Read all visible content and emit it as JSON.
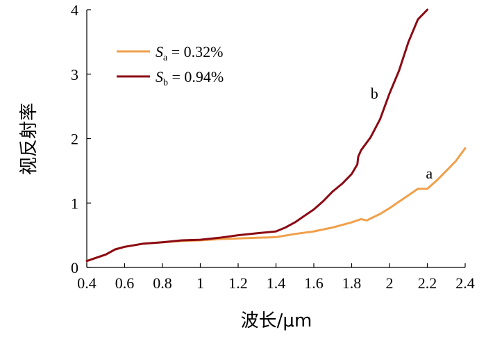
{
  "chart_data": {
    "type": "line",
    "xlabel": "波长/μm",
    "ylabel": "视反射率",
    "xlim": [
      0.4,
      2.4
    ],
    "ylim": [
      0,
      4
    ],
    "x_ticks": [
      "0.4",
      "0.6",
      "0.8",
      "1",
      "1.2",
      "1.4",
      "1.6",
      "1.8",
      "2",
      "2.2",
      "2.4"
    ],
    "y_ticks": [
      "0",
      "1",
      "2",
      "3",
      "4"
    ],
    "grid": false,
    "legend_position": "top-left",
    "series": [
      {
        "name_symbol": "S",
        "name_sub": "a",
        "name_rest": " = 0.32%",
        "color": "#f0a04b",
        "annotation": "a",
        "annotation_at": [
          2.21,
          1.38
        ],
        "x": [
          0.4,
          0.45,
          0.5,
          0.55,
          0.6,
          0.7,
          0.8,
          0.9,
          1.0,
          1.1,
          1.2,
          1.3,
          1.4,
          1.5,
          1.6,
          1.7,
          1.8,
          1.85,
          1.88,
          1.9,
          1.95,
          2.0,
          2.05,
          2.1,
          2.15,
          2.2,
          2.25,
          2.3,
          2.35,
          2.4
        ],
        "y": [
          0.1,
          0.15,
          0.2,
          0.28,
          0.32,
          0.37,
          0.39,
          0.41,
          0.42,
          0.44,
          0.45,
          0.46,
          0.47,
          0.52,
          0.56,
          0.62,
          0.7,
          0.75,
          0.73,
          0.76,
          0.83,
          0.92,
          1.02,
          1.12,
          1.22,
          1.22,
          1.35,
          1.5,
          1.65,
          1.85
        ]
      },
      {
        "name_symbol": "S",
        "name_sub": "b",
        "name_rest": " = 0.94%",
        "color": "#8b0a14",
        "annotation": "b",
        "annotation_at": [
          1.92,
          2.62
        ],
        "x": [
          0.4,
          0.45,
          0.5,
          0.55,
          0.6,
          0.7,
          0.8,
          0.9,
          1.0,
          1.1,
          1.2,
          1.3,
          1.4,
          1.45,
          1.5,
          1.55,
          1.6,
          1.65,
          1.7,
          1.75,
          1.8,
          1.83,
          1.835,
          1.85,
          1.9,
          1.95,
          2.0,
          2.05,
          2.1,
          2.15,
          2.2
        ],
        "y": [
          0.1,
          0.15,
          0.2,
          0.28,
          0.32,
          0.37,
          0.39,
          0.42,
          0.43,
          0.46,
          0.5,
          0.53,
          0.56,
          0.62,
          0.7,
          0.8,
          0.9,
          1.03,
          1.18,
          1.3,
          1.45,
          1.6,
          1.72,
          1.82,
          2.02,
          2.3,
          2.7,
          3.05,
          3.5,
          3.85,
          4.0
        ]
      }
    ]
  }
}
